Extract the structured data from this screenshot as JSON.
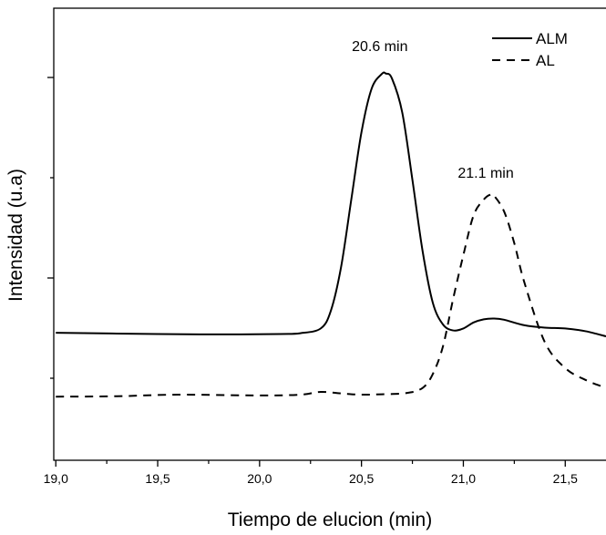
{
  "chart_data": {
    "type": "line",
    "title": "",
    "xlabel": "Tiempo de elucion (min)",
    "ylabel": "Intensidad (u.a)",
    "xlim": [
      18.99,
      21.7
    ],
    "ylim": [
      0,
      1
    ],
    "x_ticks": [
      19.0,
      19.5,
      20.0,
      20.5,
      21.0,
      21.5
    ],
    "x_tick_labels": [
      "19,0",
      "19,5",
      "20,0",
      "20,5",
      "21,0",
      "21,5"
    ],
    "y_ticks_labeled": false,
    "grid": false,
    "legend_position": "top-right",
    "series": [
      {
        "name": "ALM",
        "line_style": "solid",
        "x": [
          19.0,
          19.5,
          19.8,
          20.1,
          20.2,
          20.3,
          20.35,
          20.4,
          20.45,
          20.5,
          20.55,
          20.6,
          20.62,
          20.65,
          20.7,
          20.75,
          20.8,
          20.85,
          20.9,
          20.95,
          21.0,
          21.05,
          21.1,
          21.15,
          21.2,
          21.3,
          21.4,
          21.5,
          21.6,
          21.7
        ],
        "y": [
          0.264,
          0.261,
          0.26,
          0.261,
          0.263,
          0.275,
          0.32,
          0.43,
          0.6,
          0.77,
          0.88,
          0.917,
          0.918,
          0.905,
          0.82,
          0.65,
          0.47,
          0.34,
          0.285,
          0.27,
          0.275,
          0.29,
          0.298,
          0.3,
          0.297,
          0.283,
          0.277,
          0.275,
          0.268,
          0.255
        ]
      },
      {
        "name": "AL",
        "line_style": "dashed",
        "x": [
          19.0,
          19.3,
          19.6,
          20.0,
          20.2,
          20.3,
          20.4,
          20.5,
          20.6,
          20.72,
          20.8,
          20.85,
          20.9,
          20.95,
          21.0,
          21.05,
          21.1,
          21.13,
          21.15,
          21.2,
          21.25,
          21.3,
          21.4,
          21.5,
          21.6,
          21.7
        ],
        "y": [
          0.103,
          0.104,
          0.108,
          0.106,
          0.108,
          0.115,
          0.111,
          0.108,
          0.109,
          0.112,
          0.125,
          0.16,
          0.23,
          0.35,
          0.46,
          0.56,
          0.6,
          0.612,
          0.61,
          0.57,
          0.49,
          0.39,
          0.24,
          0.175,
          0.145,
          0.125
        ]
      }
    ],
    "annotations": [
      {
        "text": "20.6 min",
        "x": 20.59,
        "y": 0.975
      },
      {
        "text": "21.1 min",
        "x": 21.11,
        "y": 0.655
      }
    ]
  }
}
